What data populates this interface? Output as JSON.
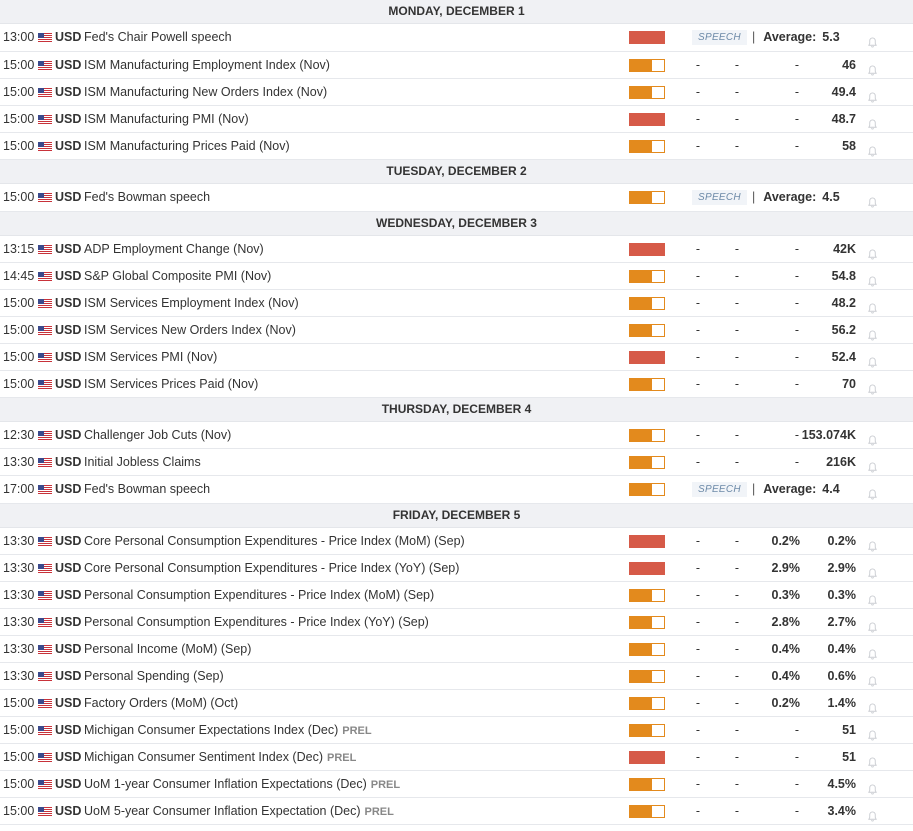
{
  "currency": "USD",
  "flag_icon": "us-flag-icon",
  "colors": {
    "high_impact": "#d65a48",
    "medium_impact": "#e38a1d",
    "speech_text": "#6d8aa8"
  },
  "speech_label": "SPEECH",
  "average_label": "Average:",
  "prel_label": "PREL",
  "days": [
    {
      "title": "MONDAY, DECEMBER 1",
      "events": [
        {
          "time": "13:00",
          "name": "Fed's Chair Powell speech",
          "impact": "high",
          "speech": true,
          "average": "5.3"
        },
        {
          "time": "15:00",
          "name": "ISM Manufacturing Employment Index (Nov)",
          "impact": "medium",
          "actual": "-",
          "deviation": "-",
          "consensus": "-",
          "previous": "46"
        },
        {
          "time": "15:00",
          "name": "ISM Manufacturing New Orders Index (Nov)",
          "impact": "medium",
          "actual": "-",
          "deviation": "-",
          "consensus": "-",
          "previous": "49.4"
        },
        {
          "time": "15:00",
          "name": "ISM Manufacturing PMI (Nov)",
          "impact": "high",
          "actual": "-",
          "deviation": "-",
          "consensus": "-",
          "previous": "48.7"
        },
        {
          "time": "15:00",
          "name": "ISM Manufacturing Prices Paid (Nov)",
          "impact": "medium",
          "actual": "-",
          "deviation": "-",
          "consensus": "-",
          "previous": "58"
        }
      ]
    },
    {
      "title": "TUESDAY, DECEMBER 2",
      "events": [
        {
          "time": "15:00",
          "name": "Fed's Bowman speech",
          "impact": "medium",
          "speech": true,
          "average": "4.5"
        }
      ]
    },
    {
      "title": "WEDNESDAY, DECEMBER 3",
      "events": [
        {
          "time": "13:15",
          "name": "ADP Employment Change (Nov)",
          "impact": "high",
          "actual": "-",
          "deviation": "-",
          "consensus": "-",
          "previous": "42K"
        },
        {
          "time": "14:45",
          "name": "S&P Global Composite PMI (Nov)",
          "impact": "medium",
          "actual": "-",
          "deviation": "-",
          "consensus": "-",
          "previous": "54.8"
        },
        {
          "time": "15:00",
          "name": "ISM Services Employment Index (Nov)",
          "impact": "medium",
          "actual": "-",
          "deviation": "-",
          "consensus": "-",
          "previous": "48.2"
        },
        {
          "time": "15:00",
          "name": "ISM Services New Orders Index (Nov)",
          "impact": "medium",
          "actual": "-",
          "deviation": "-",
          "consensus": "-",
          "previous": "56.2"
        },
        {
          "time": "15:00",
          "name": "ISM Services PMI (Nov)",
          "impact": "high",
          "actual": "-",
          "deviation": "-",
          "consensus": "-",
          "previous": "52.4"
        },
        {
          "time": "15:00",
          "name": "ISM Services Prices Paid (Nov)",
          "impact": "medium",
          "actual": "-",
          "deviation": "-",
          "consensus": "-",
          "previous": "70"
        }
      ]
    },
    {
      "title": "THURSDAY, DECEMBER 4",
      "events": [
        {
          "time": "12:30",
          "name": "Challenger Job Cuts (Nov)",
          "impact": "medium",
          "actual": "-",
          "deviation": "-",
          "consensus": "-",
          "previous": "153.074K"
        },
        {
          "time": "13:30",
          "name": "Initial Jobless Claims",
          "impact": "medium",
          "actual": "-",
          "deviation": "-",
          "consensus": "-",
          "previous": "216K"
        },
        {
          "time": "17:00",
          "name": "Fed's Bowman speech",
          "impact": "medium",
          "speech": true,
          "average": "4.4"
        }
      ]
    },
    {
      "title": "FRIDAY, DECEMBER 5",
      "events": [
        {
          "time": "13:30",
          "name": "Core Personal Consumption Expenditures - Price Index (MoM) (Sep)",
          "impact": "high",
          "actual": "-",
          "deviation": "-",
          "consensus": "0.2%",
          "previous": "0.2%"
        },
        {
          "time": "13:30",
          "name": "Core Personal Consumption Expenditures - Price Index (YoY) (Sep)",
          "impact": "high",
          "actual": "-",
          "deviation": "-",
          "consensus": "2.9%",
          "previous": "2.9%"
        },
        {
          "time": "13:30",
          "name": "Personal Consumption Expenditures - Price Index (MoM) (Sep)",
          "impact": "medium",
          "actual": "-",
          "deviation": "-",
          "consensus": "0.3%",
          "previous": "0.3%"
        },
        {
          "time": "13:30",
          "name": "Personal Consumption Expenditures - Price Index (YoY) (Sep)",
          "impact": "medium",
          "actual": "-",
          "deviation": "-",
          "consensus": "2.8%",
          "previous": "2.7%"
        },
        {
          "time": "13:30",
          "name": "Personal Income (MoM) (Sep)",
          "impact": "medium",
          "actual": "-",
          "deviation": "-",
          "consensus": "0.4%",
          "previous": "0.4%"
        },
        {
          "time": "13:30",
          "name": "Personal Spending (Sep)",
          "impact": "medium",
          "actual": "-",
          "deviation": "-",
          "consensus": "0.4%",
          "previous": "0.6%"
        },
        {
          "time": "15:00",
          "name": "Factory Orders (MoM) (Oct)",
          "impact": "medium",
          "actual": "-",
          "deviation": "-",
          "consensus": "0.2%",
          "previous": "1.4%"
        },
        {
          "time": "15:00",
          "name": "Michigan Consumer Expectations Index (Dec)",
          "prel": true,
          "impact": "medium",
          "actual": "-",
          "deviation": "-",
          "consensus": "-",
          "previous": "51"
        },
        {
          "time": "15:00",
          "name": "Michigan Consumer Sentiment Index (Dec)",
          "prel": true,
          "impact": "high",
          "actual": "-",
          "deviation": "-",
          "consensus": "-",
          "previous": "51"
        },
        {
          "time": "15:00",
          "name": "UoM 1-year Consumer Inflation Expectations (Dec)",
          "prel": true,
          "impact": "medium",
          "actual": "-",
          "deviation": "-",
          "consensus": "-",
          "previous": "4.5%"
        },
        {
          "time": "15:00",
          "name": "UoM 5-year Consumer Inflation Expectation (Dec)",
          "prel": true,
          "impact": "medium",
          "actual": "-",
          "deviation": "-",
          "consensus": "-",
          "previous": "3.4%"
        }
      ]
    }
  ]
}
